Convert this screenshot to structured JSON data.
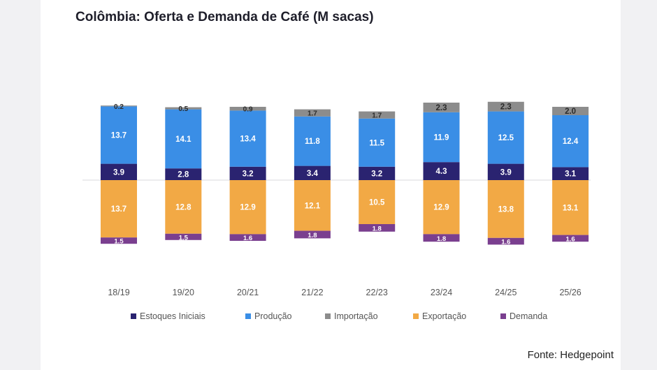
{
  "title": "Colômbia: Oferta e Demanda de Café (M sacas)",
  "source": "Fonte: Hedgepoint",
  "chart_data": {
    "type": "bar",
    "stacked": true,
    "diverging": true,
    "categories": [
      "18/19",
      "19/20",
      "20/21",
      "21/22",
      "22/23",
      "23/24",
      "24/25",
      "25/26"
    ],
    "series": [
      {
        "name": "Estoques Iniciais",
        "side": "supply",
        "color": "#2a2370",
        "values": [
          3.9,
          2.8,
          3.2,
          3.4,
          3.2,
          4.3,
          3.9,
          3.1
        ],
        "labels": [
          "3.9",
          "2.8",
          "3.2",
          "3.4",
          "3.2",
          "4.3",
          "3.9",
          "3.1"
        ]
      },
      {
        "name": "Produção",
        "side": "supply",
        "color": "#3a8ee6",
        "values": [
          13.7,
          14.1,
          13.4,
          11.8,
          11.5,
          11.9,
          12.5,
          12.4
        ],
        "labels": [
          "13.7",
          "14.1",
          "13.4",
          "11.8",
          "11.5",
          "11.9",
          "12.5",
          "12.4"
        ]
      },
      {
        "name": "Importação",
        "side": "supply",
        "color": "#8c8c8c",
        "values": [
          0.2,
          0.5,
          0.9,
          1.7,
          1.7,
          2.3,
          2.3,
          2.0
        ],
        "labels": [
          "0.2",
          "0.5",
          "0.9",
          "1.7",
          "1.7",
          "2.3",
          "2.3",
          "2.0"
        ]
      },
      {
        "name": "Exportação",
        "side": "demand",
        "color": "#f2a945",
        "values": [
          13.7,
          12.8,
          12.9,
          12.1,
          10.5,
          12.9,
          13.8,
          13.1
        ],
        "labels": [
          "13.7",
          "12.8",
          "12.9",
          "12.1",
          "10.5",
          "12.9",
          "13.8",
          "13.1"
        ]
      },
      {
        "name": "Demanda",
        "side": "demand",
        "color": "#7a3f8f",
        "values": [
          1.5,
          1.5,
          1.6,
          1.8,
          1.8,
          1.8,
          1.6,
          1.6
        ],
        "labels": [
          "1.5",
          "1.5",
          "1.6",
          "1.8",
          "1.8",
          "1.8",
          "1.6",
          "1.6"
        ]
      }
    ],
    "legend_position": "bottom",
    "grid": false
  }
}
